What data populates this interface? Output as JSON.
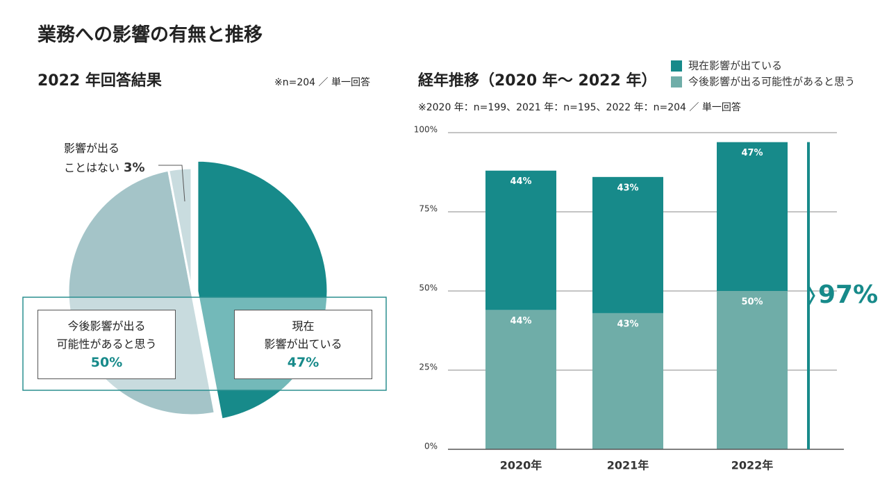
{
  "title": "業務への影響の有無と推移",
  "chart_data": [
    {
      "type": "pie",
      "title": "2022 年回答結果",
      "note": "※n=204 ／ 単一回答",
      "categories": [
        "現在\n影響が出ている",
        "今後影響が出る\n可能性があると思う",
        "影響が出る\nことはない"
      ],
      "values": [
        47,
        50,
        3
      ],
      "value_labels": [
        "47%",
        "50%",
        "3%"
      ],
      "colors": [
        "#178a8a",
        "#a4c4c8",
        "#c9dcdf"
      ]
    },
    {
      "type": "bar",
      "stacked": true,
      "title": "経年推移（2020 年〜 2022 年）",
      "note": "※2020 年：n=199、2021 年：n=195、2022 年：n=204 ／ 単一回答",
      "categories": [
        "2020年",
        "2021年",
        "2022年"
      ],
      "series": [
        {
          "name": "今後影響が出る可能性があると思う",
          "color": "#6fada8",
          "values": [
            44,
            43,
            50
          ],
          "value_labels": [
            "44%",
            "43%",
            "50%"
          ]
        },
        {
          "name": "現在影響が出ている",
          "color": "#178a8a",
          "values": [
            44,
            43,
            47
          ],
          "value_labels": [
            "44%",
            "43%",
            "47%"
          ]
        }
      ],
      "ylim": [
        0,
        100
      ],
      "yticks": [
        {
          "value": 0,
          "label": "0%"
        },
        {
          "value": 25,
          "label": "25%"
        },
        {
          "value": 50,
          "label": "50%"
        },
        {
          "value": 75,
          "label": "75%"
        },
        {
          "value": 100,
          "label": "100%"
        }
      ],
      "grid": true,
      "annotation": {
        "value": 97,
        "label": "97%"
      }
    }
  ]
}
